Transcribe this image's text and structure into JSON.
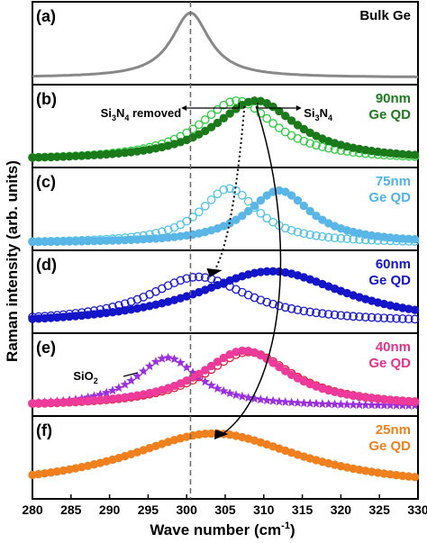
{
  "chart_data": {
    "type": "scatter",
    "ylabel": "Raman intensity (arb. units)",
    "xlabel": "Wave number (cm",
    "xlabel_sup": "-1",
    "xlabel_close": ")",
    "xlim": [
      280,
      330
    ],
    "xticks": [
      280,
      285,
      290,
      295,
      300,
      305,
      310,
      315,
      320,
      325,
      330
    ],
    "reference_line_x": 300.5,
    "panels": [
      {
        "tag": "(a)",
        "label_lines": [
          "Bulk Ge"
        ],
        "label_color": "#000000",
        "series": [
          {
            "style": "line",
            "color": "#888888",
            "center": 300.5,
            "width": 3.0,
            "amp": 0.92,
            "base": 0.05
          }
        ]
      },
      {
        "tag": "(b)",
        "label_lines": [
          "90nm",
          "Ge QD"
        ],
        "label_color": "#1f7a1f",
        "annotation_left": "Si",
        "annotation_left_sub": "3",
        "annotation_left_mid": "N",
        "annotation_left_sub2": "4",
        "annotation_left_tail": " removed",
        "annotation_right": "Si",
        "annotation_right_sub": "3",
        "annotation_right_mid": "N",
        "annotation_right_sub2": "4",
        "series": [
          {
            "style": "open",
            "color": "#2ecc40",
            "center": 306.5,
            "width": 6.0,
            "amp": 0.85,
            "base": 0.05
          },
          {
            "style": "filled",
            "color": "#1a7a1a",
            "center": 309.0,
            "width": 6.5,
            "amp": 0.85,
            "base": 0.05
          }
        ]
      },
      {
        "tag": "(c)",
        "label_lines": [
          "75nm",
          "Ge QD"
        ],
        "label_color": "#4fb3e8",
        "series": [
          {
            "style": "open",
            "color": "#4fc3e8",
            "center": 305.5,
            "width": 4.5,
            "amp": 0.78,
            "base": 0.05
          },
          {
            "style": "filled",
            "color": "#59b6e6",
            "center": 312.0,
            "width": 5.0,
            "amp": 0.75,
            "base": 0.05
          }
        ]
      },
      {
        "tag": "(d)",
        "label_lines": [
          "60nm",
          "Ge QD"
        ],
        "label_color": "#1414c8",
        "series": [
          {
            "style": "open",
            "color": "#1a1ad0",
            "center": 301.5,
            "width": 8.0,
            "amp": 0.65,
            "base": 0.1
          },
          {
            "style": "filled",
            "color": "#1414c8",
            "center": 311.0,
            "width": 12.0,
            "amp": 0.78,
            "base": 0.05
          }
        ]
      },
      {
        "tag": "(e)",
        "label_lines": [
          "40nm",
          "Ge QD"
        ],
        "label_color": "#e8308a",
        "annotation_sio2": "SiO",
        "annotation_sio2_sub": "2",
        "series": [
          {
            "style": "star",
            "color": "#9b30e0",
            "center": 297.5,
            "width": 5.0,
            "amp": 0.7,
            "base": 0.08
          },
          {
            "style": "open",
            "color": "#e0203a",
            "center": 308.0,
            "width": 7.0,
            "amp": 0.78,
            "base": 0.08
          },
          {
            "style": "filled",
            "color": "#ee3a9a",
            "center": 307.5,
            "width": 7.0,
            "amp": 0.8,
            "base": 0.08
          }
        ]
      },
      {
        "tag": "(f)",
        "label_lines": [
          "25nm",
          "Ge QD"
        ],
        "label_color": "#f07f1e",
        "series": [
          {
            "style": "filled",
            "color": "#f07f1e",
            "center": 303.5,
            "width": 14.0,
            "amp": 0.8,
            "base": 0.08
          }
        ]
      }
    ]
  }
}
